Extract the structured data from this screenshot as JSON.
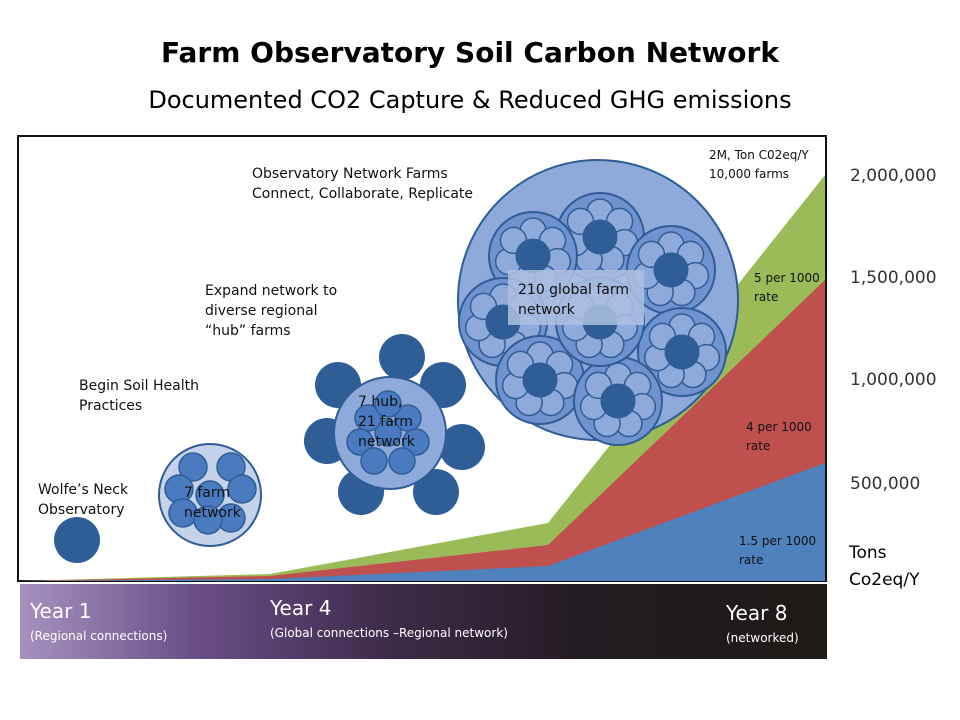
{
  "header": {
    "title": "Farm Observatory Soil Carbon Network",
    "subtitle": "Documented CO2 Capture & Reduced GHG emissions"
  },
  "annotations": {
    "network_farms": "Observatory Network Farms\nConnect, Collaborate, Replicate",
    "expand_network": "Expand network to\ndiverse regional\n“hub” farms",
    "begin_practices": "Begin Soil Health\nPractices",
    "wolfes_neck": "Wolfe’s Neck\nObservatory",
    "seven_farm": "7 farm\nnetwork",
    "hub_network": "7 hub,\n21 farm\nnetwork",
    "global_network": "210 global farm\nnetwork",
    "top_value": "2M, Ton C02eq/Y\n10,000 farms",
    "rate_5": "5 per 1000\nrate",
    "rate_4": "4 per 1000\nrate",
    "rate_15": "1.5 per 1000\nrate"
  },
  "axis": {
    "ticks": [
      "2,000,000",
      "1,500,000",
      "1,000,000",
      "500,000"
    ],
    "units": "Tons\nCo2eq/Y"
  },
  "timeline": [
    {
      "year": "Year 1",
      "desc": "(Regional connections)"
    },
    {
      "year": "Year 4",
      "desc": "(Global connections –Regional network)"
    },
    {
      "year": "Year 8",
      "desc": "(networked)"
    }
  ],
  "colors": {
    "rate_5": "#9bbb59",
    "rate_4": "#c0504d",
    "rate_15": "#4f81bd",
    "node": "#2f5d96",
    "node_light": "#8eaadb"
  }
}
